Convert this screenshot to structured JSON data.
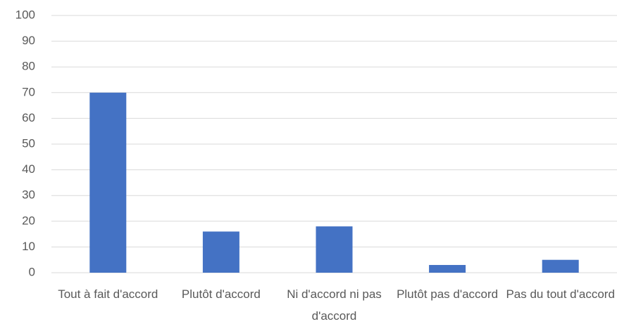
{
  "chart_data": {
    "type": "bar",
    "categories": [
      "Tout à fait d'accord",
      "Plutôt d'accord",
      "Ni d'accord ni pas d'accord",
      "Plutôt pas d'accord",
      "Pas du tout d'accord"
    ],
    "values": [
      70,
      16,
      18,
      3,
      5
    ],
    "color": "#4472c4",
    "ylim": [
      0,
      100
    ],
    "yticks": [
      0,
      10,
      20,
      30,
      40,
      50,
      60,
      70,
      80,
      90,
      100
    ],
    "grid": true
  }
}
